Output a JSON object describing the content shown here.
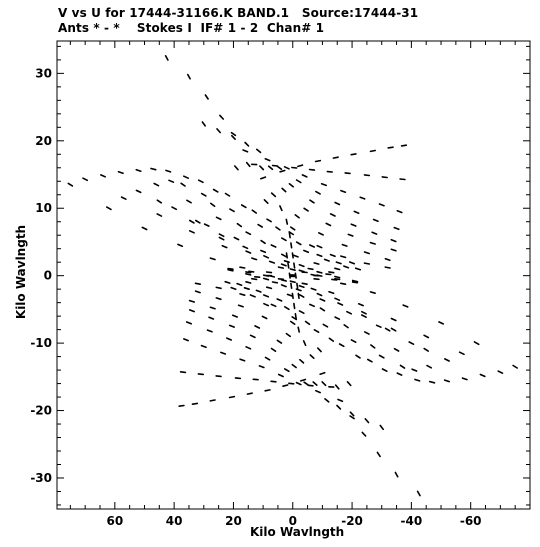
{
  "chart_data": {
    "type": "scatter",
    "title_line1": "V vs U for 17444-31166.K BAND.1   Source:17444-31",
    "title_line2": "Ants * - *    Stokes I  IF# 1 - 2  Chan# 1",
    "xlabel": "Kilo Wavlngth",
    "ylabel": "Kilo Wavlngth",
    "xlim": [
      79.5,
      -80
    ],
    "ylim": [
      -34.6,
      34.8
    ],
    "x_reversed": true,
    "xticks": [
      60,
      40,
      20,
      0,
      -20,
      -40,
      -60
    ],
    "xtick_labels": [
      "60",
      "40",
      "20",
      "0",
      "-20",
      "-40",
      "-60"
    ],
    "yticks": [
      30,
      20,
      10,
      0,
      -10,
      -20,
      -30
    ],
    "ytick_labels": [
      "30",
      "20",
      "10",
      "0",
      "-10",
      "-20",
      "-30"
    ],
    "grid": false,
    "marker_color": "#000000",
    "note": "uv-coverage: each track is a short dashed arc; points are symmetric through the origin",
    "tracks": [
      [
        [
          42.5,
          32.3
        ],
        [
          30.0,
          22.5
        ],
        [
          19.0,
          16.0
        ],
        [
          9.0,
          11.0
        ],
        [
          0.0,
          7.0
        ],
        [
          -9.0,
          4.3
        ],
        [
          -17.0,
          2.8
        ],
        [
          -25.0,
          1.8
        ],
        [
          -32.0,
          1.2
        ]
      ],
      [
        [
          35.0,
          29.5
        ],
        [
          25.0,
          21.5
        ],
        [
          15.0,
          16.5
        ],
        [
          6.5,
          12.0
        ],
        [
          -1.5,
          8.8
        ],
        [
          -9.5,
          6.2
        ],
        [
          -17.5,
          4.5
        ],
        [
          -25.0,
          3.4
        ],
        [
          -32.0,
          2.4
        ]
      ],
      [
        [
          29.0,
          26.5
        ],
        [
          20.0,
          20.5
        ],
        [
          10.5,
          16.0
        ],
        [
          3.0,
          12.7
        ],
        [
          -4.5,
          9.8
        ],
        [
          -12.0,
          7.6
        ],
        [
          -19.5,
          6.0
        ],
        [
          -27.0,
          4.8
        ],
        [
          -34.0,
          3.8
        ]
      ],
      [
        [
          24.0,
          23.5
        ],
        [
          15.5,
          19.5
        ],
        [
          7.5,
          16.0
        ],
        [
          0.5,
          13.4
        ],
        [
          -6.5,
          11.0
        ],
        [
          -13.5,
          9.0
        ],
        [
          -20.5,
          7.5
        ],
        [
          -27.5,
          6.3
        ],
        [
          -34.0,
          5.2
        ]
      ],
      [
        [
          20.0,
          21.0
        ],
        [
          11.5,
          18.5
        ],
        [
          4.5,
          16.0
        ],
        [
          -2.0,
          14.0
        ],
        [
          -8.5,
          12.3
        ],
        [
          -15.0,
          10.7
        ],
        [
          -21.5,
          9.4
        ],
        [
          -28.0,
          8.2
        ],
        [
          -35.0,
          7.0
        ]
      ],
      [
        [
          16.0,
          18.5
        ],
        [
          8.5,
          17.2
        ],
        [
          2.0,
          16.0
        ],
        [
          -4.0,
          14.8
        ],
        [
          -10.5,
          13.5
        ],
        [
          -17.0,
          12.5
        ],
        [
          -23.5,
          11.5
        ],
        [
          -30.0,
          10.5
        ],
        [
          -36.0,
          9.5
        ]
      ],
      [
        [
          13.0,
          16.5
        ],
        [
          6.0,
          16.3
        ],
        [
          -0.5,
          16.0
        ],
        [
          -6.5,
          15.7
        ],
        [
          -12.5,
          15.4
        ],
        [
          -18.5,
          15.2
        ],
        [
          -25.0,
          14.9
        ],
        [
          -31.0,
          14.6
        ],
        [
          -37.0,
          14.3
        ]
      ],
      [
        [
          10.0,
          14.5
        ],
        [
          3.5,
          15.5
        ],
        [
          -2.5,
          16.3
        ],
        [
          -8.5,
          17.0
        ],
        [
          -14.5,
          17.5
        ],
        [
          -20.5,
          18.0
        ],
        [
          -27.0,
          18.5
        ],
        [
          -33.0,
          19.0
        ],
        [
          -37.5,
          19.3
        ]
      ],
      [
        [
          75.0,
          13.5
        ],
        [
          62.0,
          10.0
        ],
        [
          50.0,
          7.0
        ],
        [
          38.0,
          4.5
        ],
        [
          27.0,
          2.5
        ],
        [
          17.0,
          1.2
        ],
        [
          8.0,
          0.5
        ],
        [
          0.0,
          0.1
        ],
        [
          -8.0,
          0.0
        ]
      ],
      [
        [
          70.0,
          14.3
        ],
        [
          57.0,
          11.5
        ],
        [
          45.0,
          9.0
        ],
        [
          34.0,
          6.5
        ],
        [
          23.0,
          4.3
        ],
        [
          13.0,
          2.5
        ],
        [
          4.0,
          1.2
        ],
        [
          -4.0,
          0.5
        ],
        [
          -12.0,
          0.2
        ]
      ],
      [
        [
          64.0,
          14.8
        ],
        [
          52.0,
          12.5
        ],
        [
          40.0,
          10.0
        ],
        [
          29.0,
          7.5
        ],
        [
          19.0,
          5.5
        ],
        [
          10.0,
          3.6
        ],
        [
          2.0,
          2.1
        ],
        [
          -6.0,
          1.0
        ],
        [
          -13.0,
          0.5
        ]
      ],
      [
        [
          58.0,
          15.3
        ],
        [
          46.0,
          13.5
        ],
        [
          35.0,
          11.0
        ],
        [
          25.0,
          8.5
        ],
        [
          15.0,
          6.3
        ],
        [
          6.5,
          4.4
        ],
        [
          -1.0,
          2.9
        ],
        [
          -8.0,
          1.8
        ],
        [
          -15.0,
          1.0
        ]
      ],
      [
        [
          52.0,
          15.6
        ],
        [
          41.0,
          14.0
        ],
        [
          30.0,
          12.0
        ],
        [
          20.5,
          9.7
        ],
        [
          11.0,
          7.4
        ],
        [
          3.0,
          5.4
        ],
        [
          -4.5,
          3.6
        ],
        [
          -11.5,
          2.3
        ],
        [
          -18.0,
          1.3
        ]
      ],
      [
        [
          47.0,
          15.8
        ],
        [
          36.0,
          14.6
        ],
        [
          26.0,
          12.6
        ],
        [
          16.5,
          10.3
        ],
        [
          8.0,
          8.2
        ],
        [
          0.5,
          6.3
        ],
        [
          -6.5,
          4.4
        ],
        [
          -13.5,
          3.0
        ],
        [
          -20.0,
          1.9
        ]
      ],
      [
        [
          42.0,
          15.5
        ],
        [
          31.0,
          14.0
        ],
        [
          22.0,
          12.0
        ],
        [
          13.0,
          9.5
        ],
        [
          5.0,
          7.0
        ],
        [
          -2.0,
          4.8
        ],
        [
          -9.0,
          3.0
        ],
        [
          -15.5,
          1.9
        ],
        [
          -22.0,
          1.0
        ]
      ],
      [
        [
          37.0,
          13.5
        ],
        [
          27.0,
          10.5
        ],
        [
          18.0,
          7.5
        ],
        [
          10.0,
          5.0
        ],
        [
          3.0,
          3.0
        ],
        [
          -3.0,
          1.5
        ],
        [
          -9.0,
          0.5
        ],
        [
          -15.0,
          -0.2
        ],
        [
          -21.0,
          -0.8
        ]
      ],
      [
        [
          45.0,
          11.0
        ],
        [
          34.0,
          8.0
        ],
        [
          24.0,
          5.5
        ],
        [
          15.0,
          3.5
        ],
        [
          7.0,
          2.0
        ],
        [
          0.0,
          0.9
        ],
        [
          -7.0,
          0.1
        ],
        [
          -14.0,
          -0.6
        ],
        [
          -21.0,
          -1.0
        ]
      ],
      [
        [
          4.0,
          10.0
        ],
        [
          2.0,
          8.0
        ],
        [
          1.0,
          6.0
        ],
        [
          0.5,
          4.5
        ],
        [
          0.0,
          3.0
        ],
        [
          -0.5,
          1.5
        ],
        [
          -1.0,
          0.0
        ],
        [
          -1.5,
          -1.5
        ],
        [
          -2.0,
          -3.0
        ]
      ],
      [
        [
          32.0,
          8.0
        ],
        [
          24.0,
          6.0
        ],
        [
          16.0,
          4.2
        ],
        [
          9.0,
          2.8
        ],
        [
          3.0,
          1.6
        ],
        [
          -3.0,
          0.7
        ],
        [
          -9.0,
          0.0
        ],
        [
          -15.0,
          -0.5
        ],
        [
          -21.0,
          -0.9
        ]
      ]
    ]
  }
}
